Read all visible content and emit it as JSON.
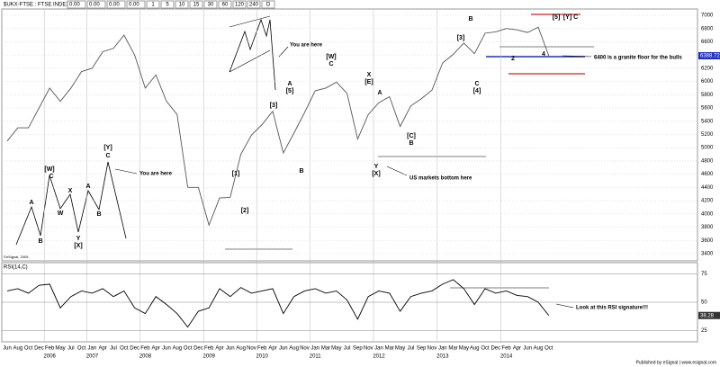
{
  "header": {
    "symbol": "$UKX-FTSE : FTSE INDEX",
    "quotes": [
      "0.00",
      "0.00",
      "0.00",
      "0.00"
    ],
    "intervals": [
      "1",
      "5",
      "10",
      "15",
      "30",
      "60",
      "120",
      "240",
      "D"
    ],
    "copyright": "©eSignal, 2005",
    "footer": "Published by eSignal | www.esignal.com"
  },
  "annotations": [
    "A",
    "B",
    "[W]",
    "C",
    "W",
    "X",
    "Y",
    "[X]",
    "A",
    "B",
    "[Y]",
    "C",
    "You are here",
    "You are here",
    "[W]",
    "C",
    "A",
    "[5]",
    "B",
    "[3]",
    "[1]",
    "[2]",
    "X",
    "[E]",
    "Y",
    "[X]",
    "A",
    "[C]",
    "B",
    "B",
    "C",
    "[4]",
    "[3]",
    "[5]",
    "[Y] C",
    "4",
    "2",
    "6400 is a granite floor for the bulls",
    "US markets bottom here",
    "Look at this RSI signature!!!"
  ],
  "chart_data": [
    {
      "type": "line",
      "title": "",
      "categories": [
        "Jun",
        "Aug",
        "Oct",
        "Dec",
        "Feb",
        "May",
        "Jul",
        "Oct",
        "Jan",
        "Apr",
        "Jul",
        "Oct",
        "Dec",
        "Feb",
        "Apr",
        "Jun",
        "Aug",
        "Oct",
        "Dec",
        "Feb",
        "Apr",
        "Jun",
        "Aug",
        "Nov",
        "Feb",
        "Apr",
        "Jun",
        "Aug",
        "Nov",
        "Jan",
        "Mar",
        "May",
        "Jul",
        "Sep",
        "Nov",
        "Jan",
        "Mar",
        "May",
        "Jul",
        "Sep",
        "Nov",
        "Jan",
        "Mar",
        "May",
        "Aug",
        "Oct",
        "Dec",
        "Feb",
        "Apr",
        "Jun",
        "Aug",
        "Oct"
      ],
      "years": [
        null,
        null,
        null,
        null,
        "2006",
        null,
        null,
        null,
        "2007",
        null,
        null,
        null,
        null,
        "2008",
        null,
        null,
        null,
        null,
        null,
        "2009",
        null,
        null,
        null,
        null,
        "2010",
        null,
        null,
        null,
        null,
        "2011",
        null,
        null,
        null,
        null,
        null,
        "2012",
        null,
        null,
        null,
        null,
        null,
        "2013",
        null,
        null,
        null,
        null,
        null,
        "2014",
        null,
        null,
        null,
        null
      ],
      "series": [
        {
          "name": "$UKX-FTSE",
          "color": "#555555",
          "values": [
            5100,
            5300,
            5300,
            5600,
            5900,
            5700,
            5900,
            6150,
            6200,
            6450,
            6500,
            6700,
            6400,
            5900,
            6100,
            5700,
            5500,
            4400,
            4400,
            3830,
            4240,
            4250,
            4900,
            5190,
            5350,
            5550,
            4920,
            5220,
            5530,
            5860,
            5900,
            5990,
            5820,
            5130,
            5500,
            5680,
            5770,
            5320,
            5630,
            5740,
            5870,
            6280,
            6410,
            6580,
            6420,
            6730,
            6750,
            6800,
            6780,
            6740,
            6820,
            6388.72
          ]
        }
      ],
      "ylim": [
        3290,
        7095
      ],
      "yticks": [
        3400,
        3600,
        3800,
        4000,
        4200,
        4400,
        4600,
        4800,
        5000,
        5200,
        5400,
        5600,
        5800,
        6000,
        6200,
        6400,
        6600,
        6800,
        7000
      ],
      "grid": true
    },
    {
      "type": "line",
      "title": "RSI(14,C)",
      "series": [
        {
          "name": "RSI",
          "color": "#000000",
          "values": [
            60,
            62,
            58,
            65,
            66,
            45,
            55,
            60,
            58,
            62,
            55,
            60,
            45,
            40,
            55,
            48,
            40,
            28,
            42,
            45,
            62,
            55,
            63,
            58,
            60,
            62,
            40,
            55,
            60,
            62,
            58,
            60,
            52,
            35,
            55,
            60,
            58,
            42,
            55,
            58,
            60,
            66,
            70,
            62,
            48,
            62,
            58,
            60,
            56,
            55,
            50,
            38.28
          ]
        }
      ],
      "ylim": [
        15,
        85
      ],
      "yticks": [
        25,
        50,
        75
      ],
      "grid": true
    }
  ]
}
